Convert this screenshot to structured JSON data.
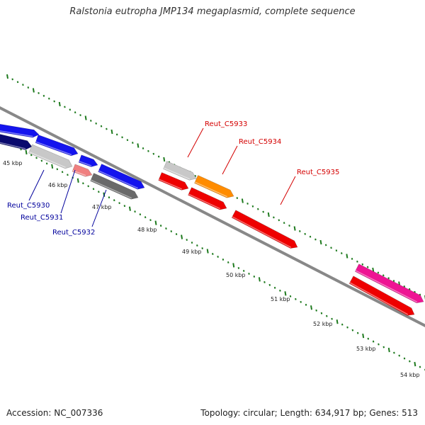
{
  "title": "Ralstonia eutropha JMP134 megaplasmid, complete sequence",
  "footer": {
    "accession": "Accession: NC_007336",
    "topology": "Topology: circular; Length: 634,917 bp; Genes: 513"
  },
  "colors": {
    "backbone": "#888888",
    "tick": "#1e7a1e",
    "label_left": "#00009c",
    "label_right": "#d40000",
    "navy": "#0a0a6e",
    "blue": "#1414ee",
    "light_gray": "#c8c8c8",
    "dark_gray": "#6a6a6a",
    "salmon": "#f08080",
    "red": "#ee0000",
    "orange": "#ff8c00",
    "magenta": "#ee1493"
  },
  "scale_labels": [
    "45 kbp",
    "46 kbp",
    "47 kbp",
    "48 kbp",
    "49 kbp",
    "50 kbp",
    "51 kbp",
    "52 kbp",
    "53 kbp",
    "54 kbp"
  ],
  "genes": {
    "left": [
      "Reut_C5930",
      "Reut_C5931",
      "Reut_C5932"
    ],
    "right": [
      "Reut_C5933",
      "Reut_C5934",
      "Reut_C5935"
    ]
  }
}
